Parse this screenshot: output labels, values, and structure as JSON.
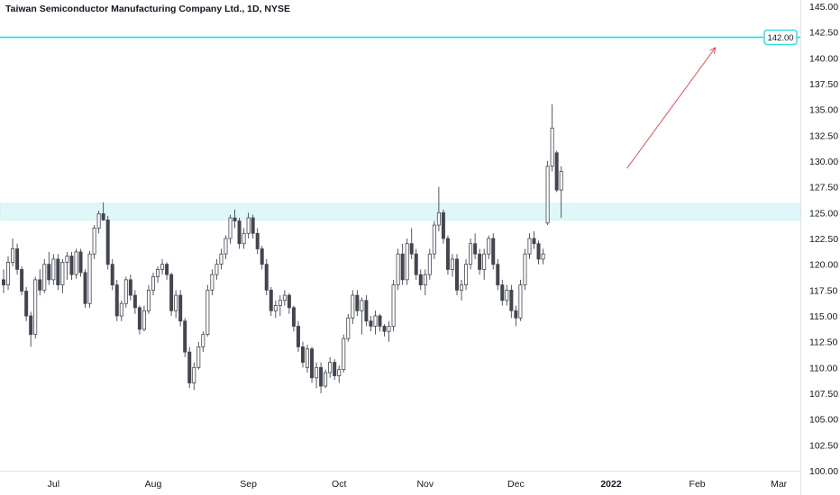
{
  "chart_data": {
    "type": "candlestick",
    "title": "Taiwan Semiconductor Manufacturing Company Ltd., 1D, NYSE",
    "ylim": [
      100,
      145
    ],
    "yticks": [
      "145.00",
      "142.50",
      "140.00",
      "137.50",
      "135.00",
      "132.50",
      "130.00",
      "127.50",
      "125.00",
      "122.50",
      "120.00",
      "117.50",
      "115.00",
      "112.50",
      "110.00",
      "107.50",
      "105.00",
      "102.50",
      "100.00"
    ],
    "xticks": [
      {
        "label": "Jul",
        "index": 11
      },
      {
        "label": "Aug",
        "index": 33
      },
      {
        "label": "Sep",
        "index": 54
      },
      {
        "label": "Oct",
        "index": 74
      },
      {
        "label": "Nov",
        "index": 93
      },
      {
        "label": "Dec",
        "index": 113
      },
      {
        "label": "2022",
        "index": 134
      },
      {
        "label": "Feb",
        "index": 153
      },
      {
        "label": "Mar",
        "index": 171
      }
    ],
    "resistance_level": {
      "value": 142.0,
      "label": "142.00"
    },
    "support_zone": {
      "from": 124.3,
      "to": 125.9
    },
    "projection_arrow": {
      "from": {
        "index": 137.5,
        "value": 129.3
      },
      "to": {
        "index": 157,
        "value": 141.0
      }
    },
    "colors": {
      "up": "#ffffff",
      "down": "#434651",
      "wick": "#434651",
      "level": "#26e0e0",
      "zone": "#e0f7fa",
      "arrow": "#f23645"
    },
    "candles": [
      [
        118.5,
        119.5,
        117.2,
        118.0
      ],
      [
        118.0,
        120.8,
        117.5,
        120.2
      ],
      [
        120.2,
        122.5,
        119.8,
        121.5
      ],
      [
        121.5,
        122.0,
        119.0,
        119.5
      ],
      [
        119.5,
        119.8,
        117.0,
        117.4
      ],
      [
        117.4,
        117.8,
        114.5,
        115.0
      ],
      [
        115.0,
        115.4,
        112.0,
        113.2
      ],
      [
        113.2,
        118.8,
        112.8,
        118.5
      ],
      [
        118.5,
        119.5,
        117.0,
        117.5
      ],
      [
        117.5,
        120.5,
        117.2,
        120.0
      ],
      [
        120.0,
        121.2,
        118.0,
        118.5
      ],
      [
        118.5,
        121.0,
        118.0,
        120.5
      ],
      [
        120.5,
        121.0,
        117.5,
        118.0
      ],
      [
        118.0,
        120.5,
        117.2,
        120.2
      ],
      [
        120.2,
        121.2,
        118.5,
        120.8
      ],
      [
        120.8,
        121.2,
        118.5,
        119.0
      ],
      [
        119.0,
        121.5,
        118.6,
        121.2
      ],
      [
        121.2,
        121.5,
        118.8,
        119.2
      ],
      [
        119.2,
        119.5,
        115.8,
        116.2
      ],
      [
        116.2,
        121.3,
        115.8,
        121.0
      ],
      [
        121.0,
        123.8,
        120.5,
        123.5
      ],
      [
        123.5,
        125.2,
        123.0,
        124.9
      ],
      [
        124.9,
        126.0,
        124.2,
        124.3
      ],
      [
        124.3,
        124.7,
        119.5,
        120.0
      ],
      [
        120.0,
        120.5,
        117.5,
        118.0
      ],
      [
        118.0,
        118.5,
        114.5,
        115.0
      ],
      [
        115.0,
        116.5,
        114.5,
        116.2
      ],
      [
        116.2,
        118.8,
        115.8,
        118.5
      ],
      [
        118.5,
        119.0,
        116.5,
        117.0
      ],
      [
        117.0,
        117.5,
        115.2,
        115.8
      ],
      [
        115.8,
        116.0,
        113.2,
        113.7
      ],
      [
        113.7,
        116.0,
        113.5,
        115.5
      ],
      [
        115.5,
        118.0,
        115.2,
        117.5
      ],
      [
        117.5,
        119.2,
        117.0,
        118.8
      ],
      [
        118.8,
        119.8,
        118.2,
        119.5
      ],
      [
        119.5,
        120.5,
        119.0,
        120.0
      ],
      [
        120.0,
        120.2,
        118.5,
        119.0
      ],
      [
        119.0,
        119.2,
        115.0,
        115.5
      ],
      [
        115.5,
        117.5,
        114.8,
        117.0
      ],
      [
        117.0,
        117.5,
        114.0,
        114.5
      ],
      [
        114.5,
        114.8,
        111.0,
        111.5
      ],
      [
        111.5,
        112.0,
        108.0,
        108.5
      ],
      [
        108.5,
        110.5,
        107.8,
        110.0
      ],
      [
        110.0,
        112.5,
        109.8,
        112.0
      ],
      [
        112.0,
        113.5,
        111.5,
        113.2
      ],
      [
        113.2,
        118.0,
        113.0,
        117.5
      ],
      [
        117.5,
        119.5,
        117.0,
        119.0
      ],
      [
        119.0,
        120.5,
        118.5,
        120.0
      ],
      [
        120.0,
        121.5,
        119.5,
        121.0
      ],
      [
        121.0,
        122.8,
        120.5,
        122.5
      ],
      [
        122.5,
        124.8,
        122.0,
        124.5
      ],
      [
        124.5,
        125.3,
        123.5,
        124.2
      ],
      [
        124.2,
        124.5,
        121.5,
        122.0
      ],
      [
        122.0,
        123.5,
        121.5,
        123.0
      ],
      [
        123.0,
        125.0,
        122.5,
        124.5
      ],
      [
        124.5,
        124.8,
        122.5,
        123.0
      ],
      [
        123.0,
        123.5,
        121.0,
        121.5
      ],
      [
        121.5,
        121.8,
        119.5,
        120.0
      ],
      [
        120.0,
        120.5,
        117.0,
        117.5
      ],
      [
        117.5,
        117.8,
        115.0,
        115.5
      ],
      [
        115.5,
        116.5,
        114.8,
        116.0
      ],
      [
        116.0,
        117.0,
        115.0,
        116.5
      ],
      [
        116.5,
        117.5,
        116.0,
        117.0
      ],
      [
        117.0,
        117.2,
        115.2,
        115.8
      ],
      [
        115.8,
        116.0,
        113.5,
        114.0
      ],
      [
        114.0,
        114.5,
        111.5,
        112.0
      ],
      [
        112.0,
        112.5,
        110.0,
        110.5
      ],
      [
        110.0,
        112.2,
        109.5,
        111.8
      ],
      [
        111.8,
        112.0,
        108.5,
        109.0
      ],
      [
        109.0,
        110.5,
        108.0,
        110.0
      ],
      [
        110.0,
        110.5,
        107.5,
        108.2
      ],
      [
        108.2,
        109.8,
        108.0,
        109.5
      ],
      [
        109.5,
        111.0,
        109.0,
        110.5
      ],
      [
        110.5,
        110.8,
        108.8,
        109.2
      ],
      [
        109.2,
        110.2,
        108.5,
        109.8
      ],
      [
        109.8,
        113.2,
        109.5,
        112.8
      ],
      [
        112.8,
        115.2,
        112.5,
        114.8
      ],
      [
        114.8,
        117.5,
        114.2,
        117.0
      ],
      [
        117.0,
        117.5,
        115.0,
        115.5
      ],
      [
        115.5,
        116.8,
        113.2,
        116.5
      ],
      [
        116.5,
        117.0,
        114.0,
        114.5
      ],
      [
        114.5,
        115.0,
        113.5,
        114.0
      ],
      [
        114.0,
        115.5,
        113.2,
        115.0
      ],
      [
        115.0,
        115.2,
        113.5,
        114.0
      ],
      [
        114.0,
        114.2,
        113.0,
        113.5
      ],
      [
        113.5,
        114.5,
        112.5,
        114.0
      ],
      [
        114.0,
        118.5,
        113.5,
        118.0
      ],
      [
        118.0,
        121.5,
        117.5,
        121.0
      ],
      [
        121.0,
        122.0,
        118.0,
        118.5
      ],
      [
        118.5,
        122.5,
        118.0,
        122.0
      ],
      [
        122.0,
        123.5,
        120.5,
        121.0
      ],
      [
        121.0,
        121.5,
        118.5,
        119.0
      ],
      [
        119.0,
        119.5,
        117.5,
        118.0
      ],
      [
        118.0,
        119.5,
        117.0,
        119.0
      ],
      [
        119.0,
        121.5,
        118.5,
        121.0
      ],
      [
        121.0,
        124.2,
        120.5,
        123.8
      ],
      [
        123.8,
        127.5,
        123.2,
        125.0
      ],
      [
        125.0,
        125.3,
        122.0,
        122.5
      ],
      [
        122.5,
        122.8,
        119.0,
        119.5
      ],
      [
        119.5,
        121.0,
        118.8,
        120.5
      ],
      [
        120.5,
        121.0,
        117.0,
        117.5
      ],
      [
        117.5,
        118.5,
        116.5,
        118.0
      ],
      [
        118.0,
        120.5,
        117.5,
        120.0
      ],
      [
        120.0,
        122.5,
        119.5,
        122.0
      ],
      [
        122.0,
        123.0,
        120.5,
        121.0
      ],
      [
        121.0,
        121.5,
        119.0,
        119.5
      ],
      [
        119.5,
        121.5,
        118.5,
        121.0
      ],
      [
        121.0,
        122.8,
        120.5,
        122.5
      ],
      [
        122.5,
        123.0,
        119.5,
        120.0
      ],
      [
        120.0,
        120.5,
        117.5,
        118.0
      ],
      [
        118.0,
        118.5,
        116.0,
        116.5
      ],
      [
        116.5,
        118.0,
        116.0,
        117.5
      ],
      [
        117.5,
        118.0,
        114.8,
        115.5
      ],
      [
        115.5,
        116.0,
        114.0,
        114.8
      ],
      [
        114.8,
        118.5,
        114.5,
        118.0
      ],
      [
        118.0,
        121.5,
        117.5,
        121.0
      ],
      [
        121.0,
        123.0,
        120.5,
        122.5
      ],
      [
        122.5,
        123.2,
        121.5,
        122.0
      ],
      [
        122.0,
        122.3,
        120.0,
        120.5
      ],
      [
        120.5,
        121.5,
        120.0,
        121.0
      ],
      [
        124.0,
        130.0,
        123.8,
        129.5
      ],
      [
        129.5,
        135.5,
        129.0,
        133.2
      ],
      [
        130.8,
        131.0,
        127.0,
        127.2
      ],
      [
        127.2,
        129.5,
        124.5,
        129.0
      ]
    ]
  }
}
